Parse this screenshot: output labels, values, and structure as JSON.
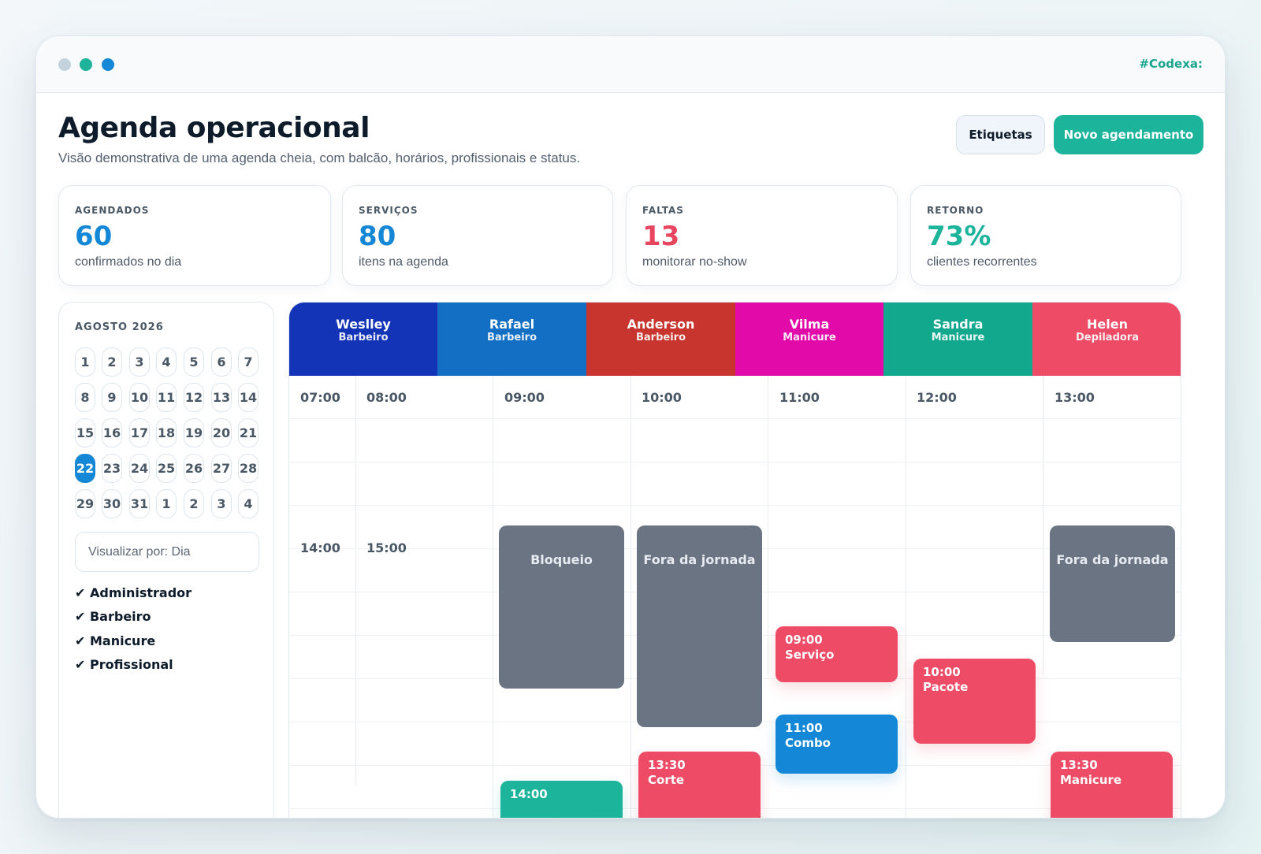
{
  "window": {
    "brand": "#Codexa:"
  },
  "header": {
    "title": "Agenda operacional",
    "subtitle": "Visão demonstrativa de uma agenda cheia, com balcão, horários, profissionais e status.",
    "tags_button": "Etiquetas",
    "new_button": "Novo agendamento"
  },
  "stats": [
    {
      "label": "AGENDADOS",
      "value": "60",
      "desc": "confirmados no dia",
      "color": "#1487d6"
    },
    {
      "label": "SERVIÇOS",
      "value": "80",
      "desc": "itens na agenda",
      "color": "#1487d6"
    },
    {
      "label": "FALTAS",
      "value": "13",
      "desc": "monitorar no-show",
      "color": "#e8455f"
    },
    {
      "label": "RETORNO",
      "value": "73%",
      "desc": "clientes recorrentes",
      "color": "#1db49c"
    }
  ],
  "calendar": {
    "month": "AGOSTO 2026",
    "days": [
      "1",
      "2",
      "3",
      "4",
      "5",
      "6",
      "7",
      "8",
      "9",
      "10",
      "11",
      "12",
      "13",
      "14",
      "15",
      "16",
      "17",
      "18",
      "19",
      "20",
      "21",
      "22",
      "23",
      "24",
      "25",
      "26",
      "27",
      "28",
      "29",
      "30",
      "31",
      "1",
      "2",
      "3",
      "4"
    ],
    "selected": "22",
    "view_select": "Visualizar por: Dia",
    "filters": [
      "✔ Administrador",
      "✔ Barbeiro",
      "✔ Manicure",
      "✔ Profissional"
    ]
  },
  "professionals": [
    {
      "name": "Weslley",
      "role": "Barbeiro",
      "color": "#1434b8"
    },
    {
      "name": "Rafael",
      "role": "Barbeiro",
      "color": "#126fc4"
    },
    {
      "name": "Anderson",
      "role": "Barbeiro",
      "color": "#c7352e"
    },
    {
      "name": "Vilma",
      "role": "Manicure",
      "color": "#e20aa8"
    },
    {
      "name": "Sandra",
      "role": "Manicure",
      "color": "#12a88e"
    },
    {
      "name": "Helen",
      "role": "Depiladora",
      "color": "#ee4b66"
    }
  ],
  "times_row1": [
    "07:00",
    "08:00",
    "09:00",
    "10:00",
    "11:00",
    "12:00",
    "13:00"
  ],
  "times_row2": [
    "14:00",
    "15:00"
  ],
  "blocks": [
    {
      "label": "Bloqueio"
    },
    {
      "label": "Fora da jornada"
    },
    {
      "label": "Fora da jornada"
    }
  ],
  "appointments": [
    {
      "time": "09:00",
      "service": "Serviço"
    },
    {
      "time": "11:00",
      "service": "Combo"
    },
    {
      "time": "10:00",
      "service": "Pacote"
    },
    {
      "time": "13:30",
      "service": "Corte"
    },
    {
      "time": "13:30",
      "service": "Manicure"
    },
    {
      "time": "14:00",
      "service": ""
    }
  ]
}
